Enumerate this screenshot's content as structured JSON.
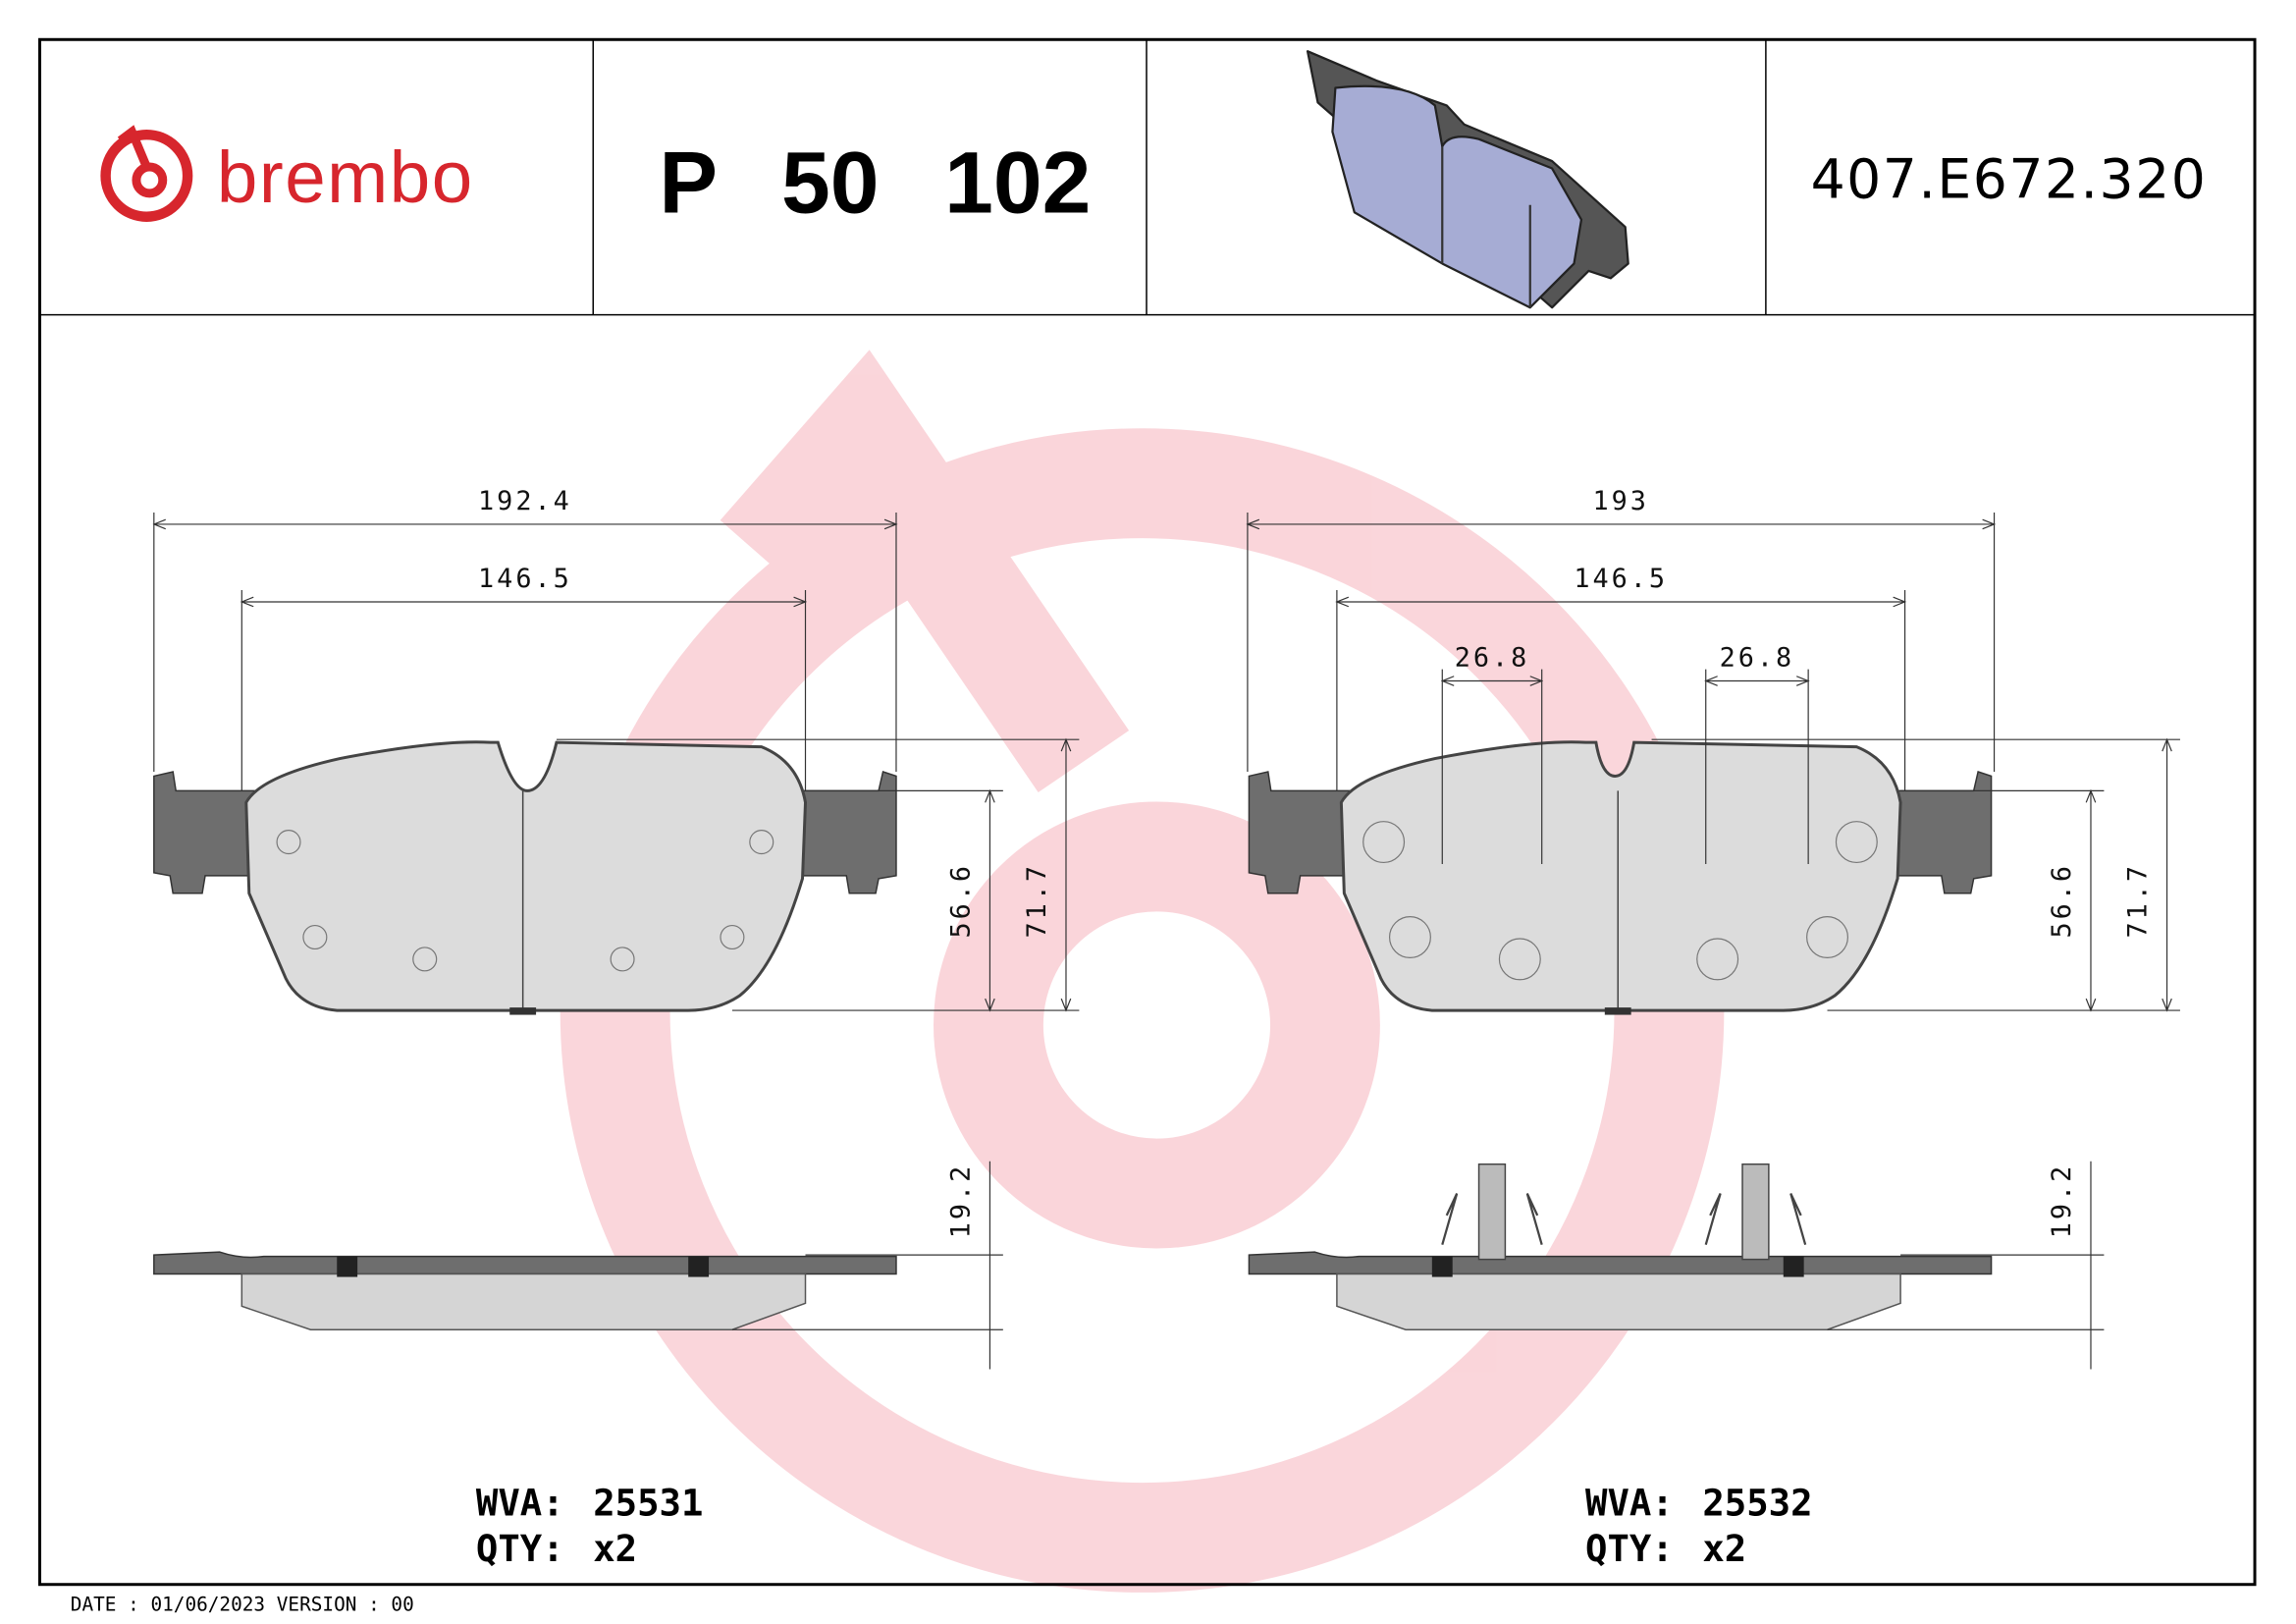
{
  "header": {
    "brand": "brembo",
    "part_number": "P 50 102",
    "reference": "407.E672.320"
  },
  "pads": [
    {
      "width": "192.4",
      "inner_width": "146.5",
      "inner_height": "56.6",
      "height": "71.7",
      "thickness": "19.2",
      "wva_label": "WVA:",
      "wva": "25531",
      "qty_label": "QTY:",
      "qty": "x2"
    },
    {
      "width": "193",
      "inner_width": "146.5",
      "sensor_spacing": [
        "26.8",
        "26.8"
      ],
      "inner_height": "56.6",
      "height": "71.7",
      "thickness": "19.2",
      "wva_label": "WVA:",
      "wva": "25532",
      "qty_label": "QTY:",
      "qty": "x2"
    }
  ],
  "footer": {
    "date": "DATE : 01/06/2023 VERSION : 00"
  }
}
